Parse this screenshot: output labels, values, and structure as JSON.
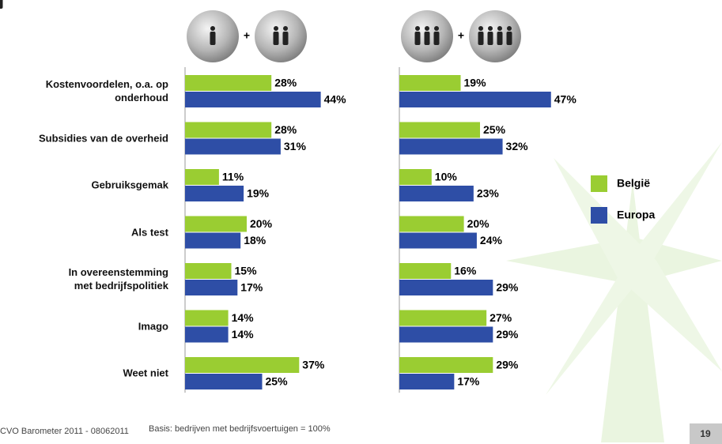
{
  "chart_data": [
    {
      "type": "bar",
      "header_symbol": "+",
      "categories": [
        "Kostenvoordelen, o.a. op\nonderhoud",
        "Subsidies van de overheid",
        "Gebruiksgemak",
        "Als test",
        "In overeenstemming\nmet bedrijfspolitiek",
        "Imago",
        "Weet niet"
      ],
      "series": [
        {
          "color": "#9acd32",
          "values": [
            28,
            28,
            11,
            20,
            15,
            14,
            37
          ],
          "value_labels": [
            "28%",
            "28%",
            "11%",
            "20%",
            "15%",
            "14%",
            "37%"
          ]
        },
        {
          "color": "#2e4ea6",
          "values": [
            44,
            31,
            19,
            18,
            17,
            14,
            25
          ],
          "value_labels": [
            "44%",
            "31%",
            "19%",
            "18%",
            "17%",
            "14%",
            "25%"
          ]
        }
      ]
    },
    {
      "type": "bar",
      "header_symbol": "+",
      "series": [
        {
          "name": "België",
          "color": "#9acd32",
          "values": [
            19,
            25,
            10,
            20,
            16,
            27,
            29
          ],
          "value_labels": [
            "19%",
            "25%",
            "10%",
            "20%",
            "16%",
            "27%",
            "29%"
          ]
        },
        {
          "name": "Europa",
          "color": "#2e4ea6",
          "values": [
            47,
            32,
            23,
            24,
            29,
            29,
            17
          ],
          "value_labels": [
            "47%",
            "32%",
            "23%",
            "24%",
            "29%",
            "29%",
            "17%"
          ]
        }
      ]
    }
  ],
  "footer": {
    "source": "CVO Barometer 2011 - 08062011",
    "basis": "Basis: bedrijven met bedrijfsvoertuigen = 100%",
    "page": "19"
  }
}
